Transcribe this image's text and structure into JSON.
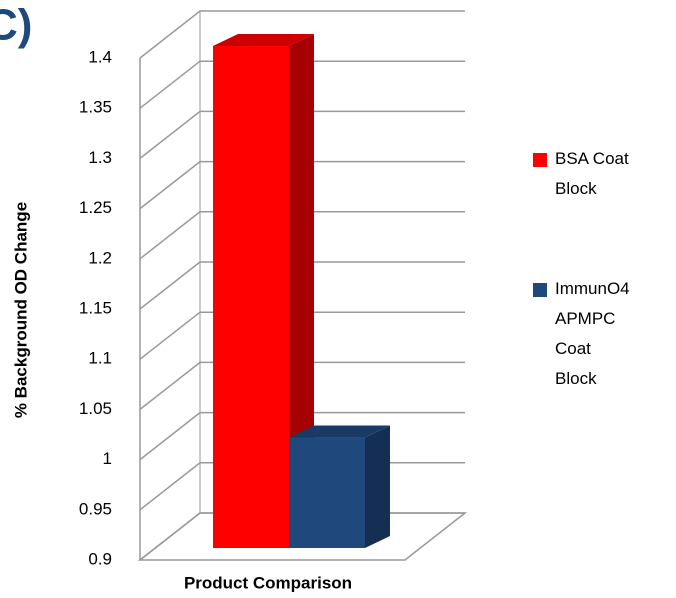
{
  "panel_label": "C)",
  "chart_data": {
    "type": "bar3d",
    "y_label": "% Background OD Change",
    "x_label": "Product Comparison",
    "series": [
      {
        "name": "BSA Coat Block",
        "color": "#ff0000",
        "values": [
          1.4
        ]
      },
      {
        "name": "ImmunO4 APMPC Coat Block",
        "color": "#1f497d",
        "values": [
          1.01
        ]
      }
    ],
    "ylim": [
      0.9,
      1.4
    ],
    "yticks": [
      0.9,
      0.95,
      1,
      1.05,
      1.1,
      1.15,
      1.2,
      1.25,
      1.3,
      1.35,
      1.4
    ],
    "grid": true
  }
}
